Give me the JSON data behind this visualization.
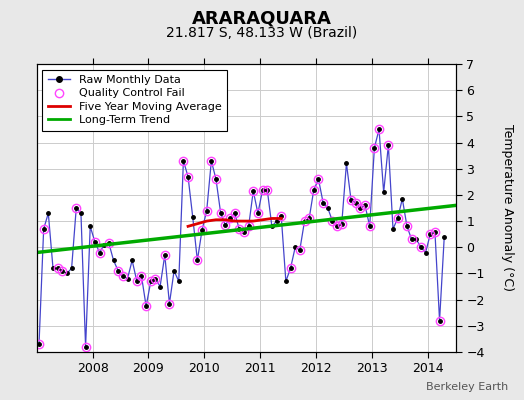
{
  "title": "ARARAQUARA",
  "subtitle": "21.817 S, 48.133 W (Brazil)",
  "ylabel": "Temperature Anomaly (°C)",
  "watermark": "Berkeley Earth",
  "ylim": [
    -4,
    7
  ],
  "yticks": [
    -4,
    -3,
    -2,
    -1,
    0,
    1,
    2,
    3,
    4,
    5,
    6,
    7
  ],
  "xlim": [
    2007.0,
    2014.5
  ],
  "background_color": "#e8e8e8",
  "plot_bg": "#ffffff",
  "raw_x": [
    2007.042,
    2007.125,
    2007.208,
    2007.292,
    2007.375,
    2007.458,
    2007.542,
    2007.625,
    2007.708,
    2007.792,
    2007.875,
    2007.958,
    2008.042,
    2008.125,
    2008.208,
    2008.292,
    2008.375,
    2008.458,
    2008.542,
    2008.625,
    2008.708,
    2008.792,
    2008.875,
    2008.958,
    2009.042,
    2009.125,
    2009.208,
    2009.292,
    2009.375,
    2009.458,
    2009.542,
    2009.625,
    2009.708,
    2009.792,
    2009.875,
    2009.958,
    2010.042,
    2010.125,
    2010.208,
    2010.292,
    2010.375,
    2010.458,
    2010.542,
    2010.625,
    2010.708,
    2010.792,
    2010.875,
    2010.958,
    2011.042,
    2011.125,
    2011.208,
    2011.292,
    2011.375,
    2011.458,
    2011.542,
    2011.625,
    2011.708,
    2011.792,
    2011.875,
    2011.958,
    2012.042,
    2012.125,
    2012.208,
    2012.292,
    2012.375,
    2012.458,
    2012.542,
    2012.625,
    2012.708,
    2012.792,
    2012.875,
    2012.958,
    2013.042,
    2013.125,
    2013.208,
    2013.292,
    2013.375,
    2013.458,
    2013.542,
    2013.625,
    2013.708,
    2013.792,
    2013.875,
    2013.958,
    2014.042,
    2014.125,
    2014.208,
    2014.292
  ],
  "raw_y": [
    -3.7,
    0.7,
    1.3,
    -0.8,
    -0.8,
    -0.9,
    -1.0,
    -0.8,
    1.5,
    1.3,
    -3.8,
    0.8,
    0.2,
    -0.2,
    0.1,
    0.15,
    -0.5,
    -0.9,
    -1.1,
    -1.2,
    -0.5,
    -1.3,
    -1.1,
    -2.25,
    -1.3,
    -1.2,
    -1.5,
    -0.3,
    -2.15,
    -0.9,
    -1.3,
    3.3,
    2.7,
    1.15,
    -0.5,
    0.65,
    1.4,
    3.3,
    2.6,
    1.3,
    0.85,
    1.1,
    1.3,
    0.7,
    0.6,
    0.8,
    2.15,
    1.3,
    2.2,
    2.2,
    0.8,
    1.0,
    1.2,
    -1.3,
    -0.8,
    0.0,
    -0.1,
    1.0,
    1.1,
    2.2,
    2.6,
    1.7,
    1.5,
    1.0,
    0.8,
    0.9,
    3.2,
    1.8,
    1.7,
    1.5,
    1.6,
    0.8,
    3.8,
    4.5,
    2.1,
    3.9,
    0.7,
    1.1,
    1.85,
    0.8,
    0.3,
    0.3,
    0.0,
    -0.2,
    0.5,
    0.6,
    -2.8,
    0.4
  ],
  "qc_fail_x": [
    2007.042,
    2007.125,
    2007.375,
    2007.458,
    2007.708,
    2007.875,
    2008.042,
    2008.125,
    2008.292,
    2008.458,
    2008.542,
    2008.792,
    2008.875,
    2008.958,
    2009.042,
    2009.125,
    2009.292,
    2009.375,
    2009.625,
    2009.708,
    2009.875,
    2009.958,
    2010.042,
    2010.125,
    2010.208,
    2010.292,
    2010.375,
    2010.458,
    2010.542,
    2010.625,
    2010.708,
    2010.792,
    2010.875,
    2010.958,
    2011.042,
    2011.125,
    2011.375,
    2011.542,
    2011.708,
    2011.792,
    2011.875,
    2011.958,
    2012.042,
    2012.125,
    2012.292,
    2012.375,
    2012.458,
    2012.625,
    2012.708,
    2012.792,
    2012.875,
    2012.958,
    2013.042,
    2013.125,
    2013.292,
    2013.458,
    2013.625,
    2013.708,
    2013.875,
    2014.042,
    2014.125,
    2014.208
  ],
  "qc_fail_y": [
    -3.7,
    0.7,
    -0.8,
    -0.9,
    1.5,
    -3.8,
    0.2,
    -0.2,
    0.15,
    -0.9,
    -1.1,
    -1.3,
    -1.1,
    -2.25,
    -1.3,
    -1.2,
    -0.3,
    -2.15,
    3.3,
    2.7,
    -0.5,
    0.65,
    1.4,
    3.3,
    2.6,
    1.3,
    0.85,
    1.1,
    1.3,
    0.7,
    0.6,
    0.8,
    2.15,
    1.3,
    2.2,
    2.2,
    1.2,
    -0.8,
    -0.1,
    1.0,
    1.1,
    2.2,
    2.6,
    1.7,
    1.0,
    0.8,
    0.9,
    1.8,
    1.7,
    1.5,
    1.6,
    0.8,
    3.8,
    4.5,
    3.9,
    1.1,
    0.8,
    0.3,
    0.0,
    0.5,
    0.6,
    -2.8
  ],
  "moving_avg_x": [
    2009.708,
    2009.875,
    2010.042,
    2010.208,
    2010.375,
    2010.542,
    2010.708,
    2010.875,
    2011.042,
    2011.208,
    2011.375
  ],
  "moving_avg_y": [
    0.8,
    0.9,
    1.0,
    1.05,
    1.05,
    1.0,
    1.0,
    1.0,
    1.05,
    1.1,
    1.1
  ],
  "trend_x": [
    2007.0,
    2014.5
  ],
  "trend_y": [
    -0.2,
    1.6
  ],
  "raw_line_color": "#4444cc",
  "raw_dot_color": "#000000",
  "qc_circle_color": "#ff44ff",
  "moving_avg_color": "#dd0000",
  "trend_color": "#00aa00",
  "grid_color": "#cccccc",
  "title_fontsize": 13,
  "subtitle_fontsize": 10,
  "tick_fontsize": 9,
  "legend_fontsize": 8
}
